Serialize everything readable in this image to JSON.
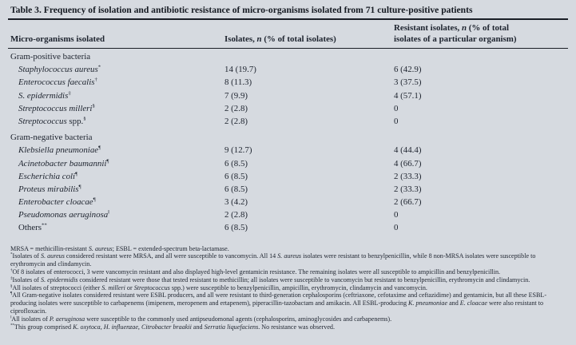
{
  "page": {
    "background": "#d6dae0",
    "text_color": "#1d232e",
    "rule_color": "#1a1e26"
  },
  "table": {
    "title": "Table 3. Frequency of isolation and antibiotic resistance of micro-organisms isolated from 71 culture-positive patients",
    "header": {
      "col1": [
        {
          "t": "Micro-organisms isolated"
        }
      ],
      "col2": [
        {
          "t": "Isolates, "
        },
        {
          "t": "n",
          "i": 1
        },
        {
          "t": " (% of total isolates)"
        }
      ],
      "col3_line1": [
        {
          "t": "Resistant isolates, "
        },
        {
          "t": "n",
          "i": 1
        },
        {
          "t": " (% of total"
        }
      ],
      "col3_line2": [
        {
          "t": "isolates of a particular organism)"
        }
      ]
    },
    "rows": [
      {
        "section": true,
        "name": [
          {
            "t": "Gram-positive bacteria"
          }
        ],
        "isolates": "",
        "resistant": ""
      },
      {
        "name": [
          {
            "t": "Staphylococcus aureus",
            "i": 1
          },
          {
            "t": "*",
            "sup": 1
          }
        ],
        "isolates": "14 (19.7)",
        "resistant": "6 (42.9)"
      },
      {
        "name": [
          {
            "t": "Enterococcus faecalis",
            "i": 1
          },
          {
            "t": "†",
            "sup": 1
          }
        ],
        "isolates": "8 (11.3)",
        "resistant": "3 (37.5)"
      },
      {
        "name": [
          {
            "t": "S. epidermidis",
            "i": 1
          },
          {
            "t": "‡",
            "sup": 1
          }
        ],
        "isolates": "7 (9.9)",
        "resistant": "4 (57.1)"
      },
      {
        "name": [
          {
            "t": "Streptococcus milleri",
            "i": 1
          },
          {
            "t": "§",
            "sup": 1
          }
        ],
        "isolates": "2 (2.8)",
        "resistant": "0"
      },
      {
        "name": [
          {
            "t": "Streptococcus",
            "i": 1
          },
          {
            "t": " spp."
          },
          {
            "t": "§",
            "sup": 1
          }
        ],
        "isolates": "2 (2.8)",
        "resistant": "0"
      },
      {
        "section": true,
        "name": [
          {
            "t": "Gram-negative bacteria"
          }
        ],
        "isolates": "",
        "resistant": ""
      },
      {
        "name": [
          {
            "t": "Klebsiella pneumoniae",
            "i": 1
          },
          {
            "t": "¶",
            "sup": 1
          }
        ],
        "isolates": "9 (12.7)",
        "resistant": "4 (44.4)"
      },
      {
        "name": [
          {
            "t": "Acinetobacter baumannii",
            "i": 1
          },
          {
            "t": "¶",
            "sup": 1
          }
        ],
        "isolates": "6 (8.5)",
        "resistant": "4 (66.7)"
      },
      {
        "name": [
          {
            "t": "Escherichia coli",
            "i": 1
          },
          {
            "t": "¶",
            "sup": 1
          }
        ],
        "isolates": "6 (8.5)",
        "resistant": "2 (33.3)"
      },
      {
        "name": [
          {
            "t": "Proteus mirabilis",
            "i": 1
          },
          {
            "t": "¶",
            "sup": 1
          }
        ],
        "isolates": "6 (8.5)",
        "resistant": "2 (33.3)"
      },
      {
        "name": [
          {
            "t": "Enterobacter cloacae",
            "i": 1
          },
          {
            "t": "¶",
            "sup": 1
          }
        ],
        "isolates": "3 (4.2)",
        "resistant": "2 (66.7)"
      },
      {
        "name": [
          {
            "t": "Pseudomonas aeruginosa",
            "i": 1
          },
          {
            "t": "‖",
            "sup": 1
          }
        ],
        "isolates": "2 (2.8)",
        "resistant": "0"
      },
      {
        "name": [
          {
            "t": "Others"
          },
          {
            "t": "**",
            "sup": 1
          }
        ],
        "isolates": "6 (8.5)",
        "resistant": "0"
      }
    ]
  },
  "footnotes": [
    [
      {
        "t": "MRSA = methicillin-resistant "
      },
      {
        "t": "S. aureus",
        "i": 1
      },
      {
        "t": "; ESBL = extended-spectrum beta-lactamase."
      }
    ],
    [
      {
        "t": "*",
        "sup": 1
      },
      {
        "t": "Isolates of "
      },
      {
        "t": "S. aureus",
        "i": 1
      },
      {
        "t": " considered resistant were MRSA, and all were susceptible to vancomycin. All 14 "
      },
      {
        "t": "S. aureus",
        "i": 1
      },
      {
        "t": " isolates were resistant to benzylpenicillin, while 8 non-MRSA isolates were susceptible to erythromycin and clindamycin."
      }
    ],
    [
      {
        "t": "†",
        "sup": 1
      },
      {
        "t": "Of 8 isolates of enterococci, 3 were vancomycin resistant and also displayed high-level gentamicin resistance. The remaining isolates were all susceptible to ampicillin and benzylpenicillin."
      }
    ],
    [
      {
        "t": "‡",
        "sup": 1
      },
      {
        "t": "Isolates of "
      },
      {
        "t": "S. epidermidis",
        "i": 1
      },
      {
        "t": " considered resistant were those that tested resistant to methicillin; all isolates were susceptible to vancomycin but resistant to benzylpenicillin, erythromycin and clindamycin."
      }
    ],
    [
      {
        "t": "§",
        "sup": 1
      },
      {
        "t": "All isolates of streptococci (either "
      },
      {
        "t": "S. milleri",
        "i": 1
      },
      {
        "t": " or "
      },
      {
        "t": "Streptococcus",
        "i": 1
      },
      {
        "t": " spp.) were susceptible to benzylpenicillin, ampicillin, erythromycin, clindamycin and vancomycin."
      }
    ],
    [
      {
        "t": "¶",
        "sup": 1
      },
      {
        "t": "All Gram-negative isolates considered resistant were ESBL producers, and all were resistant to third-generation cephalosporins (ceftriaxone, cefotaxime and ceftazidime) and gentamicin, but all these ESBL-producing isolates were susceptible to carbapenems (imipenem, meropenem and ertapenem), piperacillin-tazobactam and amikacin. All ESBL-producing "
      },
      {
        "t": "K. pneumoniae",
        "i": 1
      },
      {
        "t": " and "
      },
      {
        "t": "E. cloacae",
        "i": 1
      },
      {
        "t": " were also resistant to ciprofloxacin."
      }
    ],
    [
      {
        "t": "‖",
        "sup": 1
      },
      {
        "t": "All isolates of "
      },
      {
        "t": "P. aeruginosa",
        "i": 1
      },
      {
        "t": " were susceptible to the commonly used antipseudomonal agents (cephalosporins, aminoglycosides and carbapenems)."
      }
    ],
    [
      {
        "t": "**",
        "sup": 1
      },
      {
        "t": "This group comprised "
      },
      {
        "t": "K. oxytoca",
        "i": 1
      },
      {
        "t": ", "
      },
      {
        "t": "H. influenzae",
        "i": 1
      },
      {
        "t": ", "
      },
      {
        "t": "Citrobacter braakii",
        "i": 1
      },
      {
        "t": " and "
      },
      {
        "t": "Serratia liquefaciens",
        "i": 1
      },
      {
        "t": ". No resistance was observed."
      }
    ]
  ]
}
